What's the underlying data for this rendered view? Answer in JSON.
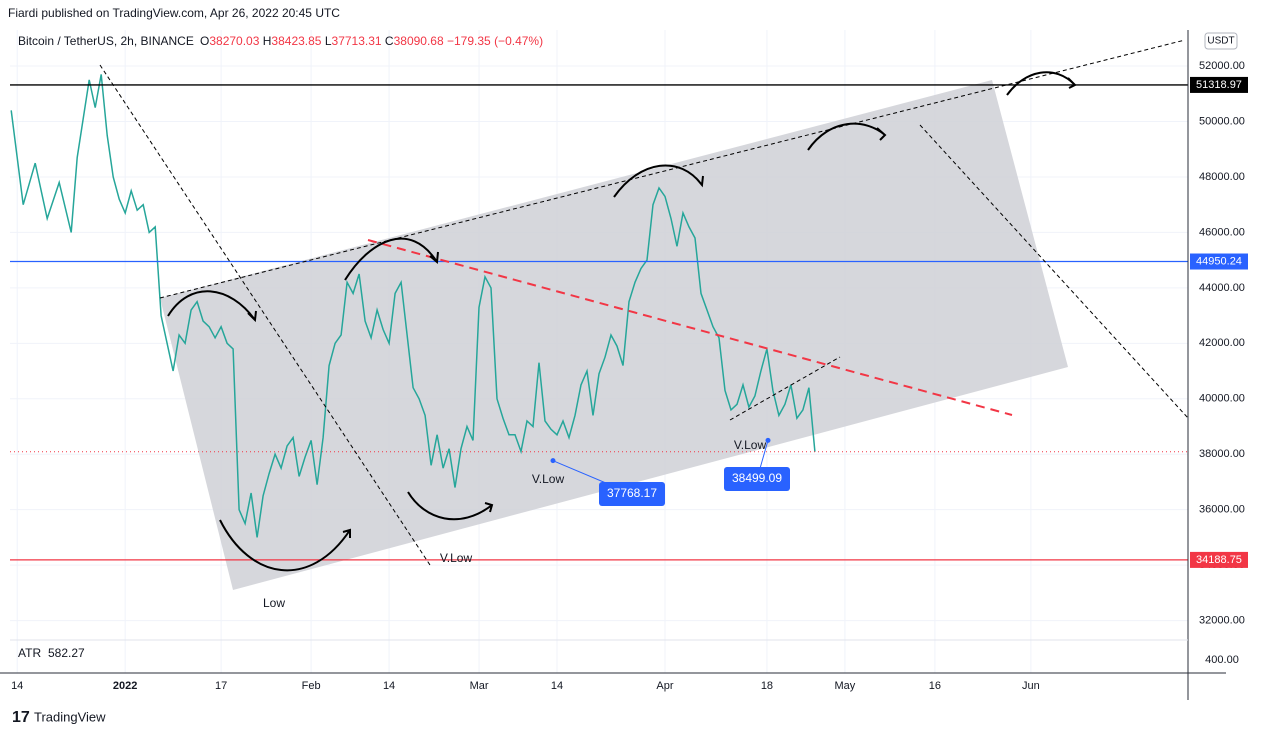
{
  "header": {
    "publisher": "Fiardi published on TradingView.com, Apr 26, 2022 20:45 UTC",
    "brand": "TradingView"
  },
  "chart_data": {
    "type": "line",
    "title": "Bitcoin / TetherUS, 2h, BINANCE",
    "ohlc": [
      {
        "key": "O",
        "value": 38270.03
      },
      {
        "key": "H",
        "value": 38423.85
      },
      {
        "key": "L",
        "value": 37713.31
      },
      {
        "key": "C",
        "value": 38090.68
      }
    ],
    "change": {
      "value": -179.35,
      "label": "−179.35"
    },
    "change_percent": {
      "value": -0.47,
      "label": "(−0.47%)"
    },
    "currency": "USDT",
    "x": [
      -1,
      1,
      3,
      5,
      7,
      9,
      10,
      12,
      13,
      14,
      15,
      16,
      17,
      18,
      19,
      20,
      21,
      22,
      23,
      24,
      25,
      26,
      27,
      28,
      29,
      30,
      31,
      32,
      33,
      34,
      35,
      36,
      37,
      38,
      39,
      40,
      41,
      42,
      43,
      44,
      45,
      46,
      47,
      48,
      49,
      50,
      51,
      52,
      53,
      54,
      55,
      56,
      57,
      58,
      59,
      60,
      61,
      62,
      63,
      64,
      65,
      66,
      67,
      68,
      69,
      70,
      71,
      72,
      73,
      74,
      75,
      76,
      77,
      78,
      79,
      80,
      81,
      82,
      83,
      84,
      85,
      86,
      87,
      88,
      89,
      90,
      91,
      92,
      93,
      94,
      95,
      96,
      97,
      98,
      99,
      100,
      101,
      102,
      103,
      104,
      105,
      106,
      107,
      108,
      109,
      110,
      111,
      112,
      113,
      114,
      115,
      116,
      117,
      118,
      119,
      120,
      121,
      122,
      123,
      124,
      125,
      126,
      127,
      128,
      129,
      130,
      131,
      132,
      133
    ],
    "series": [
      {
        "color": "#26a69a",
        "values": [
          50400,
          47000,
          48500,
          46500,
          47800,
          46000,
          48700,
          51500,
          50500,
          51700,
          49500,
          48000,
          47200,
          46700,
          47500,
          46800,
          47000,
          46000,
          46200,
          43000,
          42000,
          41000,
          42300,
          42000,
          43200,
          43500,
          42800,
          42600,
          42200,
          42600,
          42000,
          41800,
          36000,
          35500,
          36600,
          35000,
          36500,
          37300,
          38000,
          37500,
          38300,
          38600,
          37200,
          37900,
          38500,
          36900,
          38600,
          41200,
          42000,
          42300,
          44200,
          43800,
          44500,
          42800,
          42200,
          43200,
          42500,
          42000,
          43800,
          44200,
          42300,
          40400,
          40000,
          39400,
          37600,
          38700,
          37500,
          38200,
          36800,
          38200,
          39000,
          38500,
          43300,
          44400,
          44000,
          40000,
          39300,
          38700,
          38700,
          38100,
          39200,
          39000,
          41300,
          39200,
          38900,
          38700,
          39200,
          38600,
          39400,
          40500,
          41000,
          39400,
          40900,
          41500,
          42300,
          41900,
          41200,
          43500,
          44200,
          44700,
          45000,
          47000,
          47600,
          47300,
          46500,
          45500,
          46700,
          46200,
          45800,
          43800,
          43200,
          42600,
          42200,
          40300,
          39600,
          39800,
          40500,
          39700,
          40100,
          41000,
          41800,
          40300,
          39400,
          39800,
          40500,
          39300,
          39600,
          40400,
          38090
        ]
      }
    ],
    "xlim": [
      -1.2,
      195.2
    ],
    "xticks": [
      {
        "value": 0,
        "label": "14"
      },
      {
        "value": 18,
        "label": "2022"
      },
      {
        "value": 34,
        "label": "17"
      },
      {
        "value": 49,
        "label": "Feb"
      },
      {
        "value": 62,
        "label": "14"
      },
      {
        "value": 77,
        "label": "Mar"
      },
      {
        "value": 90,
        "label": "14"
      },
      {
        "value": 108,
        "label": "Apr"
      },
      {
        "value": 125,
        "label": "18"
      },
      {
        "value": 138,
        "label": "May"
      },
      {
        "value": 153,
        "label": "16"
      },
      {
        "value": 169,
        "label": "Jun"
      }
    ],
    "ylim": [
      31300,
      53300
    ],
    "yticks": [
      {
        "value": 32000,
        "label": "32000.00"
      },
      {
        "value": 34000,
        "label": "34000.00"
      },
      {
        "value": 36000,
        "label": "36000.00"
      },
      {
        "value": 38000,
        "label": "38000.00"
      },
      {
        "value": 40000,
        "label": "40000.00"
      },
      {
        "value": 42000,
        "label": "42000.00"
      },
      {
        "value": 44000,
        "label": "44000.00"
      },
      {
        "value": 46000,
        "label": "46000.00"
      },
      {
        "value": 48000,
        "label": "48000.00"
      },
      {
        "value": 50000,
        "label": "50000.00"
      },
      {
        "value": 52000,
        "label": "52000.00"
      }
    ],
    "grid": true,
    "levels": [
      {
        "value": 51318.97,
        "color": "#000000"
      },
      {
        "value": 44950.24,
        "color": "#2962ff"
      },
      {
        "value": 34188.75,
        "color": "#f23645"
      }
    ],
    "last_price": 38090.68,
    "callouts": [
      {
        "value": 37768.17
      },
      {
        "value": 38499.09
      }
    ],
    "annotations": [
      "V.Low",
      "V.Low",
      "V.Low",
      "Low"
    ],
    "indicator": {
      "name": "ATR",
      "value": 582.27,
      "tick": {
        "value": 400,
        "label": "400.00"
      }
    }
  }
}
